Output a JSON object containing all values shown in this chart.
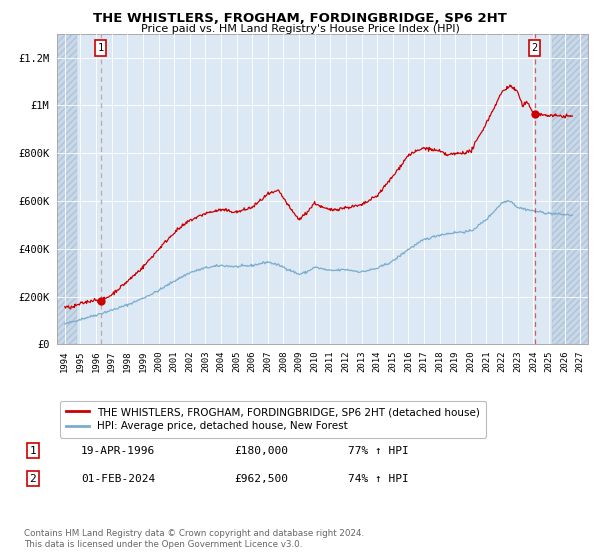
{
  "title": "THE WHISTLERS, FROGHAM, FORDINGBRIDGE, SP6 2HT",
  "subtitle": "Price paid vs. HM Land Registry's House Price Index (HPI)",
  "red_label": "THE WHISTLERS, FROGHAM, FORDINGBRIDGE, SP6 2HT (detached house)",
  "blue_label": "HPI: Average price, detached house, New Forest",
  "point1_date": "19-APR-1996",
  "point1_price": 180000,
  "point1_hpi": "77% ↑ HPI",
  "point2_date": "01-FEB-2024",
  "point2_price": 962500,
  "point2_hpi": "74% ↑ HPI",
  "point1_x": 1996.3,
  "point2_x": 2024.08,
  "copyright": "Contains HM Land Registry data © Crown copyright and database right 2024.\nThis data is licensed under the Open Government Licence v3.0.",
  "bg_color": "#dce9f5",
  "red_color": "#cc0000",
  "blue_color": "#7aaccc",
  "grid_color": "#ffffff",
  "dashed_color": "#ccaaaa",
  "ylim": [
    0,
    1300000
  ],
  "xlim": [
    1993.5,
    2027.5
  ],
  "hatch_left_end": 1994.8,
  "hatch_right_start": 2025.2
}
